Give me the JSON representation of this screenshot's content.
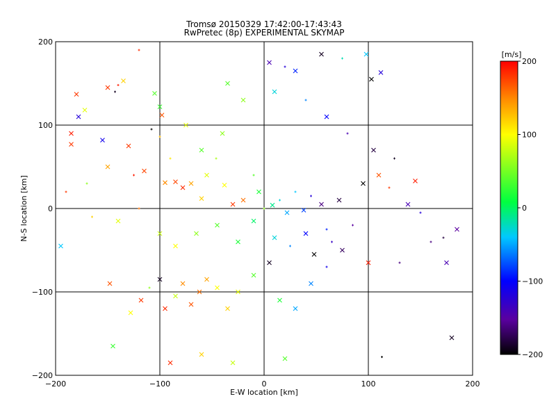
{
  "chart_data": {
    "type": "scatter",
    "title": "Tromsø 20150329 17:42:00-17:43:43",
    "subtitle": "RwPretec (8p) EXPERIMENTAL SKYMAP",
    "xlabel": "E-W location [km]",
    "ylabel": "N-S location [km]",
    "xlim": [
      -200,
      200
    ],
    "ylim": [
      -200,
      200
    ],
    "x_ticks": [
      -200,
      -100,
      0,
      100,
      200
    ],
    "y_ticks": [
      -200,
      -100,
      0,
      100,
      200
    ],
    "grid": true,
    "marker_legend": "none",
    "colorbar": {
      "label": "[m/s]",
      "range": [
        -200,
        200
      ],
      "ticks": [
        200,
        100,
        0,
        -100,
        -200
      ],
      "colormap": "rainbow (black-purple-blue-cyan-green-yellow-red)"
    },
    "colors": {
      "axis": "#000000",
      "background": "#ffffff"
    },
    "points": [
      {
        "x": -180,
        "y": 137,
        "v": 180,
        "m": "x"
      },
      {
        "x": -178,
        "y": 110,
        "v": -120,
        "m": "x"
      },
      {
        "x": -172,
        "y": 118,
        "v": 90,
        "m": "x"
      },
      {
        "x": -185,
        "y": 90,
        "v": 190,
        "m": "x"
      },
      {
        "x": -185,
        "y": 77,
        "v": 180,
        "m": "x"
      },
      {
        "x": -155,
        "y": 82,
        "v": -110,
        "m": "x"
      },
      {
        "x": -150,
        "y": 145,
        "v": 180,
        "m": "x"
      },
      {
        "x": -143,
        "y": 140,
        "v": -190,
        "m": "+"
      },
      {
        "x": -140,
        "y": 148,
        "v": 190,
        "m": "+"
      },
      {
        "x": -135,
        "y": 153,
        "v": 120,
        "m": "x"
      },
      {
        "x": -120,
        "y": 190,
        "v": 185,
        "m": "+"
      },
      {
        "x": -105,
        "y": 138,
        "v": 40,
        "m": "x"
      },
      {
        "x": -100,
        "y": 122,
        "v": 30,
        "m": "x"
      },
      {
        "x": -108,
        "y": 95,
        "v": -200,
        "m": "+"
      },
      {
        "x": -98,
        "y": 112,
        "v": 170,
        "m": "x"
      },
      {
        "x": -130,
        "y": 75,
        "v": 180,
        "m": "x"
      },
      {
        "x": -125,
        "y": 40,
        "v": 190,
        "m": "+"
      },
      {
        "x": -115,
        "y": 45,
        "v": 175,
        "m": "x"
      },
      {
        "x": -100,
        "y": 86,
        "v": 130,
        "m": "+"
      },
      {
        "x": -90,
        "y": 60,
        "v": 110,
        "m": "+"
      },
      {
        "x": -95,
        "y": 31,
        "v": 150,
        "m": "x"
      },
      {
        "x": -85,
        "y": 32,
        "v": 175,
        "m": "x"
      },
      {
        "x": -78,
        "y": 25,
        "v": 185,
        "m": "x"
      },
      {
        "x": -70,
        "y": 30,
        "v": 140,
        "m": "x"
      },
      {
        "x": -60,
        "y": 12,
        "v": 120,
        "m": "x"
      },
      {
        "x": -55,
        "y": 40,
        "v": 90,
        "m": "x"
      },
      {
        "x": -46,
        "y": 60,
        "v": 70,
        "m": "+"
      },
      {
        "x": -38,
        "y": 28,
        "v": 100,
        "m": "x"
      },
      {
        "x": -30,
        "y": 5,
        "v": 180,
        "m": "x"
      },
      {
        "x": -20,
        "y": 10,
        "v": 160,
        "m": "x"
      },
      {
        "x": -10,
        "y": 40,
        "v": 40,
        "m": "+"
      },
      {
        "x": -5,
        "y": 20,
        "v": 20,
        "m": "x"
      },
      {
        "x": 0,
        "y": 0,
        "v": 60,
        "m": "+"
      },
      {
        "x": 8,
        "y": 4,
        "v": -10,
        "m": "x"
      },
      {
        "x": 15,
        "y": 10,
        "v": -30,
        "m": "+"
      },
      {
        "x": 22,
        "y": -5,
        "v": -50,
        "m": "x"
      },
      {
        "x": 30,
        "y": 20,
        "v": -40,
        "m": "+"
      },
      {
        "x": 38,
        "y": -2,
        "v": -80,
        "m": "x"
      },
      {
        "x": 45,
        "y": 15,
        "v": -120,
        "m": "+"
      },
      {
        "x": 55,
        "y": 5,
        "v": -160,
        "m": "x"
      },
      {
        "x": 60,
        "y": -25,
        "v": -90,
        "m": "+"
      },
      {
        "x": 72,
        "y": 10,
        "v": -180,
        "m": "x"
      },
      {
        "x": 85,
        "y": -20,
        "v": -150,
        "m": "+"
      },
      {
        "x": 95,
        "y": 30,
        "v": -200,
        "m": "x"
      },
      {
        "x": 110,
        "y": 40,
        "v": 170,
        "m": "x"
      },
      {
        "x": 120,
        "y": 25,
        "v": 180,
        "m": "+"
      },
      {
        "x": 145,
        "y": 33,
        "v": 190,
        "m": "x"
      },
      {
        "x": 138,
        "y": 5,
        "v": -140,
        "m": "x"
      },
      {
        "x": 150,
        "y": -5,
        "v": -120,
        "m": "+"
      },
      {
        "x": 160,
        "y": -40,
        "v": -160,
        "m": "+"
      },
      {
        "x": 172,
        "y": -35,
        "v": -180,
        "m": "+"
      },
      {
        "x": 185,
        "y": -25,
        "v": -150,
        "m": "x"
      },
      {
        "x": 175,
        "y": -65,
        "v": -140,
        "m": "x"
      },
      {
        "x": 180,
        "y": -155,
        "v": -190,
        "m": "x"
      },
      {
        "x": 113,
        "y": -178,
        "v": -200,
        "m": "+"
      },
      {
        "x": 130,
        "y": -65,
        "v": -160,
        "m": "+"
      },
      {
        "x": 100,
        "y": -65,
        "v": 190,
        "m": "x"
      },
      {
        "x": 75,
        "y": -50,
        "v": -170,
        "m": "x"
      },
      {
        "x": 60,
        "y": -70,
        "v": -110,
        "m": "+"
      },
      {
        "x": 45,
        "y": -90,
        "v": -60,
        "m": "x"
      },
      {
        "x": 30,
        "y": -120,
        "v": -50,
        "m": "x"
      },
      {
        "x": 15,
        "y": -110,
        "v": 20,
        "m": "x"
      },
      {
        "x": 5,
        "y": -65,
        "v": -190,
        "m": "x"
      },
      {
        "x": -10,
        "y": -80,
        "v": 40,
        "m": "x"
      },
      {
        "x": -25,
        "y": -100,
        "v": 90,
        "m": "x"
      },
      {
        "x": -35,
        "y": -120,
        "v": 120,
        "m": "x"
      },
      {
        "x": -45,
        "y": -95,
        "v": 100,
        "m": "x"
      },
      {
        "x": -55,
        "y": -85,
        "v": 140,
        "m": "x"
      },
      {
        "x": -62,
        "y": -100,
        "v": 160,
        "m": "x"
      },
      {
        "x": -70,
        "y": -115,
        "v": 170,
        "m": "x"
      },
      {
        "x": -78,
        "y": -90,
        "v": 150,
        "m": "x"
      },
      {
        "x": -85,
        "y": -105,
        "v": 80,
        "m": "x"
      },
      {
        "x": -95,
        "y": -120,
        "v": 185,
        "m": "x"
      },
      {
        "x": -100,
        "y": -85,
        "v": -190,
        "m": "x"
      },
      {
        "x": -110,
        "y": -95,
        "v": 60,
        "m": "+"
      },
      {
        "x": -118,
        "y": -110,
        "v": 180,
        "m": "x"
      },
      {
        "x": -128,
        "y": -125,
        "v": 100,
        "m": "x"
      },
      {
        "x": -148,
        "y": -90,
        "v": 170,
        "m": "x"
      },
      {
        "x": -145,
        "y": -165,
        "v": 30,
        "m": "x"
      },
      {
        "x": -90,
        "y": -185,
        "v": 185,
        "m": "x"
      },
      {
        "x": -60,
        "y": -175,
        "v": 120,
        "m": "x"
      },
      {
        "x": -30,
        "y": -185,
        "v": 80,
        "m": "x"
      },
      {
        "x": 20,
        "y": -180,
        "v": 40,
        "m": "x"
      },
      {
        "x": 55,
        "y": 185,
        "v": -190,
        "m": "x"
      },
      {
        "x": 75,
        "y": 180,
        "v": -20,
        "m": "+"
      },
      {
        "x": 98,
        "y": 185,
        "v": -40,
        "m": "x"
      },
      {
        "x": 112,
        "y": 163,
        "v": -120,
        "m": "x"
      },
      {
        "x": 103,
        "y": 155,
        "v": -200,
        "m": "x"
      },
      {
        "x": 5,
        "y": 175,
        "v": -140,
        "m": "x"
      },
      {
        "x": 20,
        "y": 170,
        "v": -120,
        "m": "+"
      },
      {
        "x": 30,
        "y": 165,
        "v": -90,
        "m": "x"
      },
      {
        "x": -35,
        "y": 150,
        "v": 40,
        "m": "x"
      },
      {
        "x": -20,
        "y": 130,
        "v": 60,
        "m": "x"
      },
      {
        "x": 10,
        "y": 140,
        "v": -30,
        "m": "x"
      },
      {
        "x": 40,
        "y": 130,
        "v": -60,
        "m": "+"
      },
      {
        "x": 60,
        "y": 110,
        "v": -100,
        "m": "x"
      },
      {
        "x": 80,
        "y": 90,
        "v": -140,
        "m": "+"
      },
      {
        "x": 105,
        "y": 70,
        "v": -180,
        "m": "x"
      },
      {
        "x": 125,
        "y": 60,
        "v": -190,
        "m": "+"
      },
      {
        "x": -60,
        "y": 70,
        "v": 40,
        "m": "x"
      },
      {
        "x": -40,
        "y": 90,
        "v": 60,
        "m": "x"
      },
      {
        "x": -75,
        "y": 100,
        "v": 90,
        "m": "x"
      },
      {
        "x": -150,
        "y": 50,
        "v": 140,
        "m": "x"
      },
      {
        "x": -170,
        "y": 30,
        "v": 60,
        "m": "+"
      },
      {
        "x": -190,
        "y": 20,
        "v": 180,
        "m": "+"
      },
      {
        "x": -195,
        "y": -45,
        "v": -40,
        "m": "x"
      },
      {
        "x": -165,
        "y": -10,
        "v": 120,
        "m": "+"
      },
      {
        "x": -140,
        "y": -15,
        "v": 90,
        "m": "x"
      },
      {
        "x": -120,
        "y": 0,
        "v": 160,
        "m": "+"
      },
      {
        "x": -100,
        "y": -30,
        "v": 80,
        "m": "x"
      },
      {
        "x": -85,
        "y": -45,
        "v": 100,
        "m": "x"
      },
      {
        "x": -65,
        "y": -30,
        "v": 60,
        "m": "x"
      },
      {
        "x": -45,
        "y": -20,
        "v": 40,
        "m": "x"
      },
      {
        "x": -25,
        "y": -40,
        "v": 20,
        "m": "x"
      },
      {
        "x": -10,
        "y": -15,
        "v": 0,
        "m": "x"
      },
      {
        "x": 10,
        "y": -35,
        "v": -30,
        "m": "x"
      },
      {
        "x": 25,
        "y": -45,
        "v": -60,
        "m": "+"
      },
      {
        "x": 40,
        "y": -30,
        "v": -100,
        "m": "x"
      },
      {
        "x": 48,
        "y": -55,
        "v": -200,
        "m": "x"
      },
      {
        "x": 65,
        "y": -40,
        "v": -130,
        "m": "+"
      }
    ]
  }
}
